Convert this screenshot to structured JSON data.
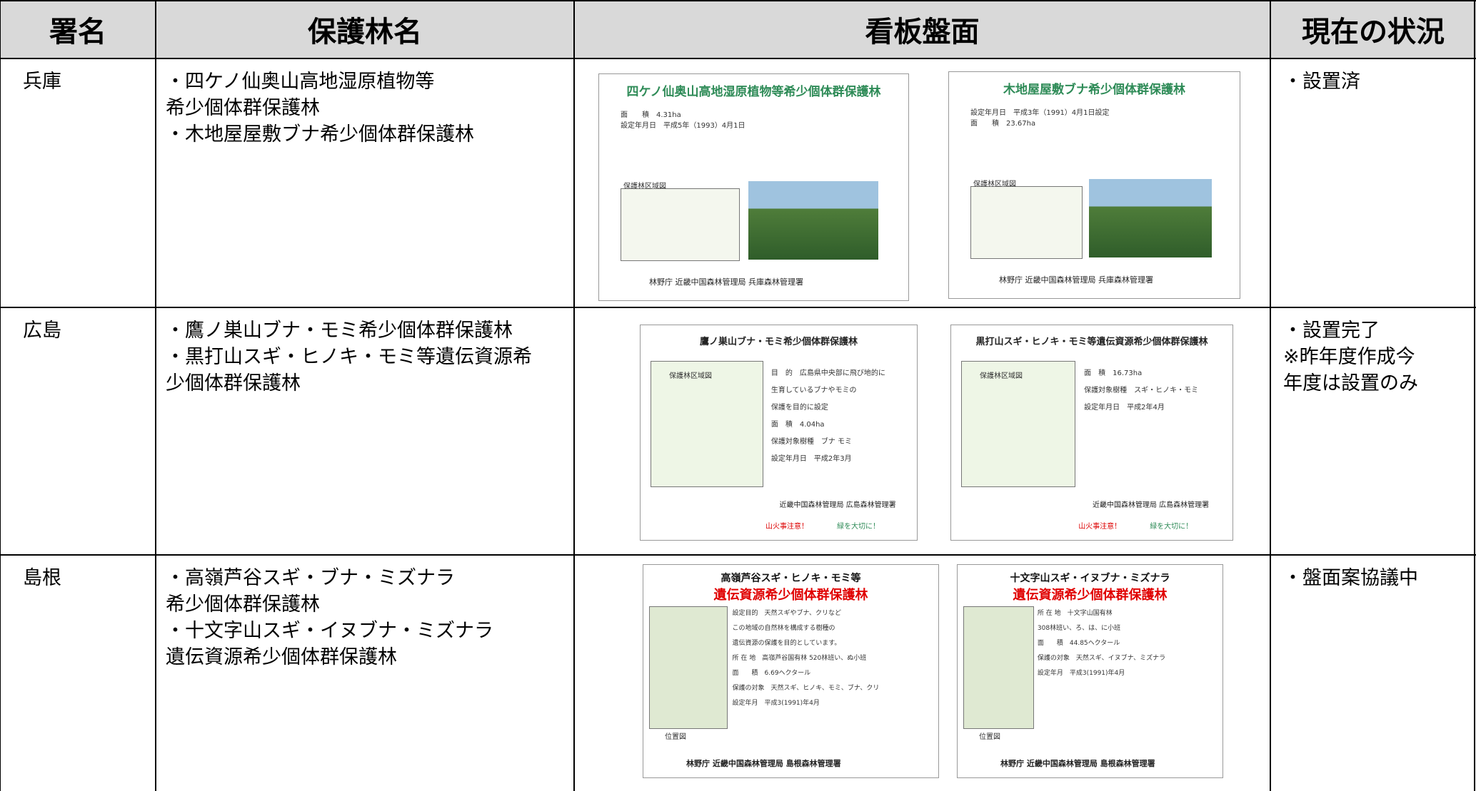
{
  "header": [
    "署名",
    "保護林名",
    "看板盤面",
    "現在の状況"
  ],
  "rows": [
    {
      "office": "兵庫",
      "forest": [
        "・四ケノ仙奥山高地湿原植物等",
        "希少個体群保護林",
        "・木地屋屋敷ブナ希少個体群保護林"
      ],
      "boards": [
        {
          "title": "四ケノ仙奥山高地湿原植物等希少個体群保護林",
          "lines": [
            "面　　積　4.31ha",
            "設定年月日　平成5年（1993）4月1日"
          ],
          "map_label": "保護林区域図",
          "footer": "林野庁 近畿中国森林管理局 兵庫森林管理署"
        },
        {
          "title": "木地屋屋敷ブナ希少個体群保護林",
          "lines": [
            "設定年月日　平成3年（1991）4月1日設定",
            "面　　積　23.67ha"
          ],
          "map_label": "保護林区域図",
          "footer": "林野庁 近畿中国森林管理局 兵庫森林管理署"
        }
      ],
      "status": [
        "・設置済"
      ]
    },
    {
      "office": "広島",
      "forest": [
        "・鷹ノ巣山ブナ・モミ希少個体群保護林",
        "・黒打山スギ・ヒノキ・モミ等遺伝資源希",
        "少個体群保護林"
      ],
      "boards": [
        {
          "title": "鷹ノ巣山ブナ・モミ希少個体群保護林",
          "lines": [
            "目　的　広島県中央部に飛び地的に",
            "生育しているブナやモミの",
            "保護を目的に設定",
            "面　積　4.04ha",
            "保護対象樹種　ブナ モミ",
            "設定年月日　平成2年3月"
          ],
          "map_label": "保護林区域図",
          "footer": "近畿中国森林管理局 広島森林管理署",
          "notes": [
            "山火事注意！",
            "緑を大切に！"
          ]
        },
        {
          "title": "黒打山スギ・ヒノキ・モミ等遺伝資源希少個体群保護林",
          "lines": [
            "面　積　16.73ha",
            "保護対象樹種　スギ・ヒノキ・モミ",
            "設定年月日　平成2年4月"
          ],
          "map_label": "保護林区域図",
          "footer": "近畿中国森林管理局 広島森林管理署",
          "notes": [
            "山火事注意！",
            "緑を大切に！"
          ]
        }
      ],
      "status": [
        "・設置完了",
        "※昨年度作成今",
        "年度は設置のみ"
      ]
    },
    {
      "office": "島根",
      "forest": [
        "・高嶺芦谷スギ・ブナ・ミズナラ",
        "希少個体群保護林",
        "・十文字山スギ・イヌブナ・ミズナラ",
        "遺伝資源希少個体群保護林"
      ],
      "boards": [
        {
          "title": "高嶺芦谷スギ・ヒノキ・モミ等",
          "subtitle": "遺伝資源希少個体群保護林",
          "lines": [
            "設定目的　天然スギやブナ、クリなど",
            "この地域の自然林を構成する樹種の",
            "遺伝資源の保護を目的としています。",
            "所 在 地　高嶺芦谷国有林 520林班い、ぬ小班",
            "面　　積　6.69ヘクタール",
            "保護の対象　天然スギ、ヒノキ、モミ、ブナ、クリ",
            "設定年月　平成3(1991)年4月"
          ],
          "map_label": "位置図",
          "footer": "林野庁 近畿中国森林管理局 島根森林管理署"
        },
        {
          "title": "十文字山スギ・イヌブナ・ミズナラ",
          "subtitle": "遺伝資源希少個体群保護林",
          "lines": [
            "所 在 地　十文字山国有林",
            "308林班い、ろ、は、に小班",
            "面　　積　44.85ヘクタール",
            "保護の対象　天然スギ、イヌブナ、ミズナラ",
            "設定年月　平成3(1991)年4月"
          ],
          "map_label": "位置図",
          "footer": "林野庁 近畿中国森林管理局 島根森林管理署"
        }
      ],
      "status": [
        "・盤面案協議中"
      ]
    }
  ]
}
